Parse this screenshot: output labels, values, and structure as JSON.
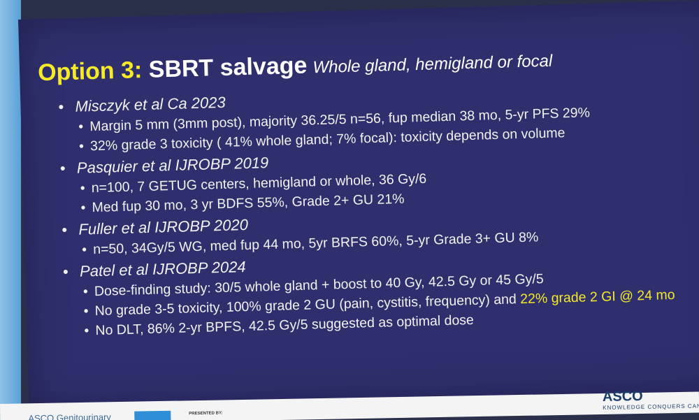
{
  "slide": {
    "title_lead": "Option 3:",
    "title_main": "SBRT salvage",
    "subtitle": "Whole gland, hemigland or focal",
    "bullets": [
      {
        "heading": "Misczyk et al Ca 2023",
        "points": [
          "Margin 5 mm (3mm post), majority 36.25/5 n=56, fup median 38 mo, 5-yr PFS 29%",
          "32% grade 3 toxicity ( 41% whole gland; 7% focal): toxicity depends on volume"
        ]
      },
      {
        "heading": "Pasquier et al IJROBP 2019",
        "points": [
          "n=100, 7 GETUG centers, hemigland or whole, 36 Gy/6",
          "Med fup 30 mo, 3 yr BDFS 55%, Grade 2+ GU 21%"
        ]
      },
      {
        "heading": "Fuller et al IJROBP 2020",
        "points": [
          "n=50, 34Gy/5 WG, med fup 44 mo, 5yr BRFS 60%, 5-yr Grade 3+ GU 8%"
        ]
      },
      {
        "heading": "Patel et al IJROBP 2024",
        "points": [
          "Dose-finding study: 30/5 whole gland + boost to 40 Gy, 42.5 Gy or 45 Gy/5",
          {
            "text": "No grade 3-5 toxicity, 100% grade 2 GU (pain, cystitis, frequency) and ",
            "highlight": "22% grade 2 GI @ 24 mo"
          },
          "No DLT, 86% 2-yr BPFS, 42.5 Gy/5 suggested as optimal dose"
        ]
      }
    ]
  },
  "footer": {
    "meeting": "ASCO Genitourinary",
    "presented_by": "PRESENTED BY:",
    "logo": "ASCO",
    "tagline": "KNOWLEDGE CONQUERS CANCER"
  }
}
